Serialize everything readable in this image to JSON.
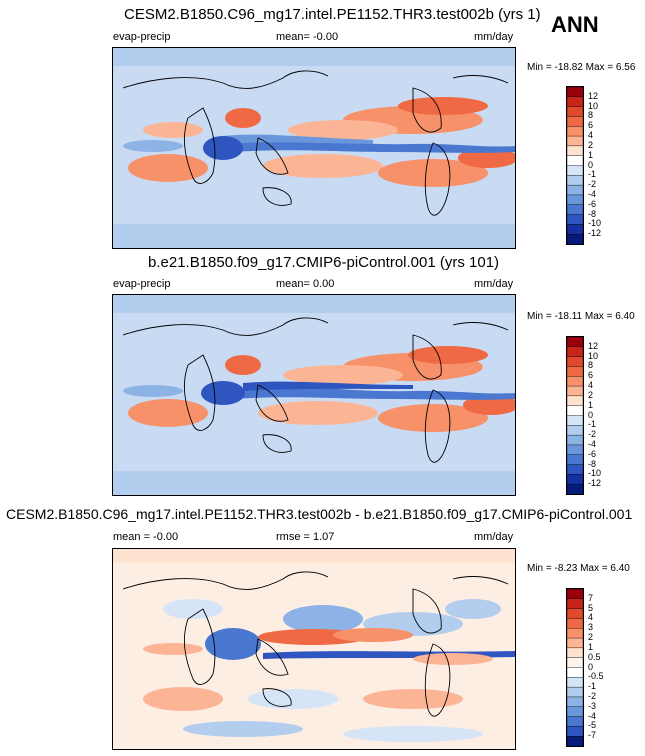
{
  "header": {
    "season": "ANN"
  },
  "panels": [
    {
      "title": "CESM2.B1850.C96_mg17.intel.PE1152.THR3.test002b (yrs 1)",
      "left": "evap-precip",
      "center": "mean=  -0.00",
      "right": "mm/day",
      "minmax": "Min = -18.82 Max =   6.56",
      "levels": [
        "12",
        "10",
        "8",
        "6",
        "4",
        "2",
        "1",
        "0",
        "-1",
        "-2",
        "-4",
        "-6",
        "-8",
        "-10",
        "-12"
      ],
      "colors": [
        "#99000d",
        "#c7251a",
        "#e0492b",
        "#ef6a44",
        "#f7916a",
        "#fbb595",
        "#fde2cf",
        "#ffffff",
        "#d6e4f7",
        "#b3cdee",
        "#8cb2e6",
        "#6a97dc",
        "#4a78d0",
        "#2f55c0",
        "#15309f",
        "#061a7a"
      ]
    },
    {
      "title": "b.e21.B1850.f09_g17.CMIP6-piControl.001 (yrs 101)",
      "left": "evap-precip",
      "center": "mean=  0.00",
      "right": "mm/day",
      "minmax": "Min = -18.11 Max =   6.40",
      "levels": [
        "12",
        "10",
        "8",
        "6",
        "4",
        "2",
        "1",
        "0",
        "-1",
        "-2",
        "-4",
        "-6",
        "-8",
        "-10",
        "-12"
      ],
      "colors": [
        "#99000d",
        "#c7251a",
        "#e0492b",
        "#ef6a44",
        "#f7916a",
        "#fbb595",
        "#fde2cf",
        "#ffffff",
        "#d6e4f7",
        "#b3cdee",
        "#8cb2e6",
        "#6a97dc",
        "#4a78d0",
        "#2f55c0",
        "#15309f",
        "#061a7a"
      ]
    },
    {
      "title": "CESM2.B1850.C96_mg17.intel.PE1152.THR3.test002b - b.e21.B1850.f09_g17.CMIP6-piControl.001",
      "left": "mean =  -0.00",
      "center": "rmse =  1.07",
      "right": "mm/day",
      "minmax": "Min =  -8.23 Max =   6.40",
      "levels": [
        "7",
        "5",
        "4",
        "3",
        "2",
        "1",
        "0.5",
        "0",
        "-0.5",
        "-1",
        "-2",
        "-3",
        "-4",
        "-5",
        "-7"
      ],
      "colors": [
        "#99000d",
        "#c7251a",
        "#e0492b",
        "#ef6a44",
        "#f7916a",
        "#fbb595",
        "#fde2cf",
        "#fff4ec",
        "#ffffff",
        "#d6e4f7",
        "#b3cdee",
        "#8cb2e6",
        "#6a97dc",
        "#4a78d0",
        "#2f55c0",
        "#061a7a"
      ]
    }
  ]
}
